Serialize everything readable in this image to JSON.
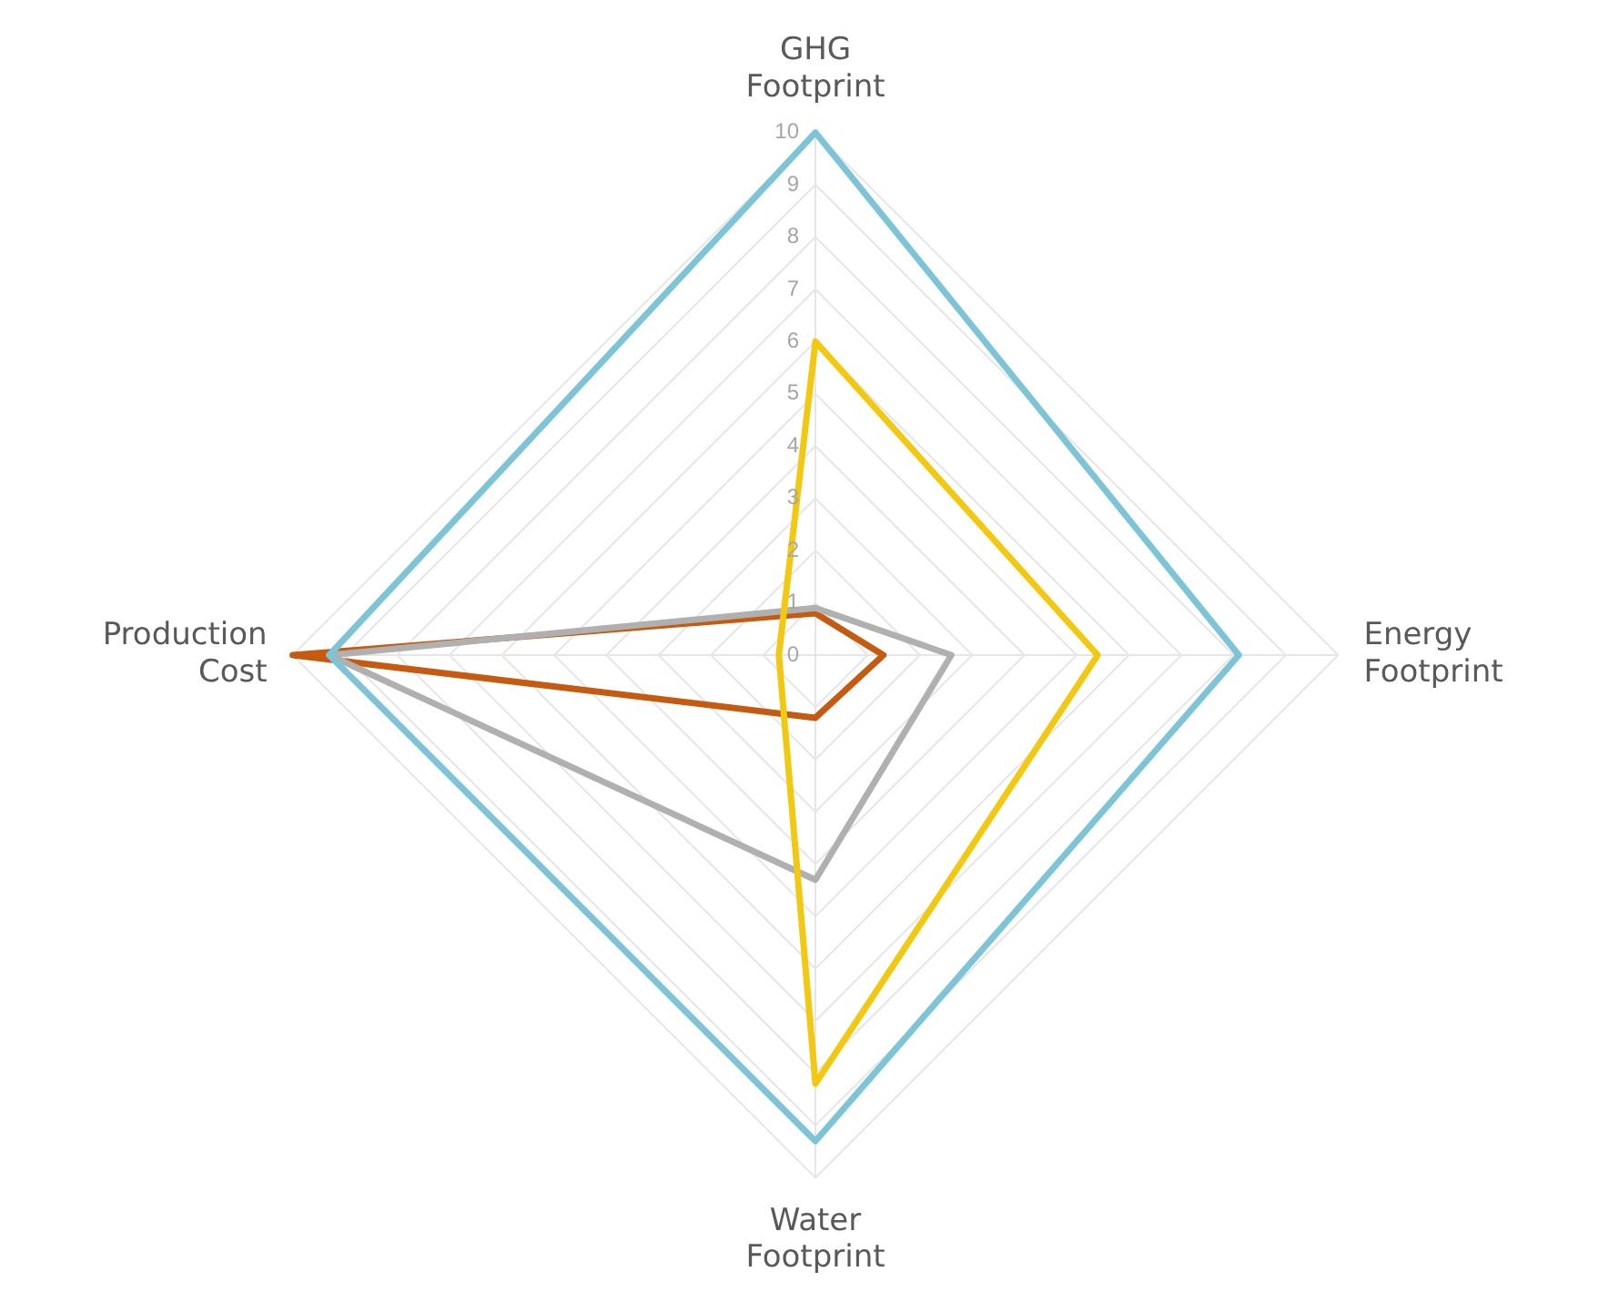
{
  "chart_data": {
    "type": "radar",
    "categories": [
      "GHG Footprint",
      "Energy Footprint",
      "Water Footprint",
      "Production Cost"
    ],
    "series": [
      {
        "color": "#7cc4d6",
        "values": [
          10,
          8.1,
          9.3,
          9.3
        ]
      },
      {
        "color": "#f2c811",
        "values": [
          6,
          5.4,
          8.2,
          0.7
        ]
      },
      {
        "color": "#b0b0b0",
        "values": [
          0.9,
          2.6,
          4.3,
          9.3
        ]
      },
      {
        "color": "#c55a11",
        "values": [
          0.8,
          1.3,
          1.2,
          10
        ]
      }
    ],
    "ylim": [
      0,
      10
    ],
    "yticks": [
      0,
      1,
      2,
      3,
      4,
      5,
      6,
      7,
      8,
      9,
      10
    ],
    "grid": true,
    "legend": false,
    "marker": "none",
    "line_style": "solid"
  }
}
